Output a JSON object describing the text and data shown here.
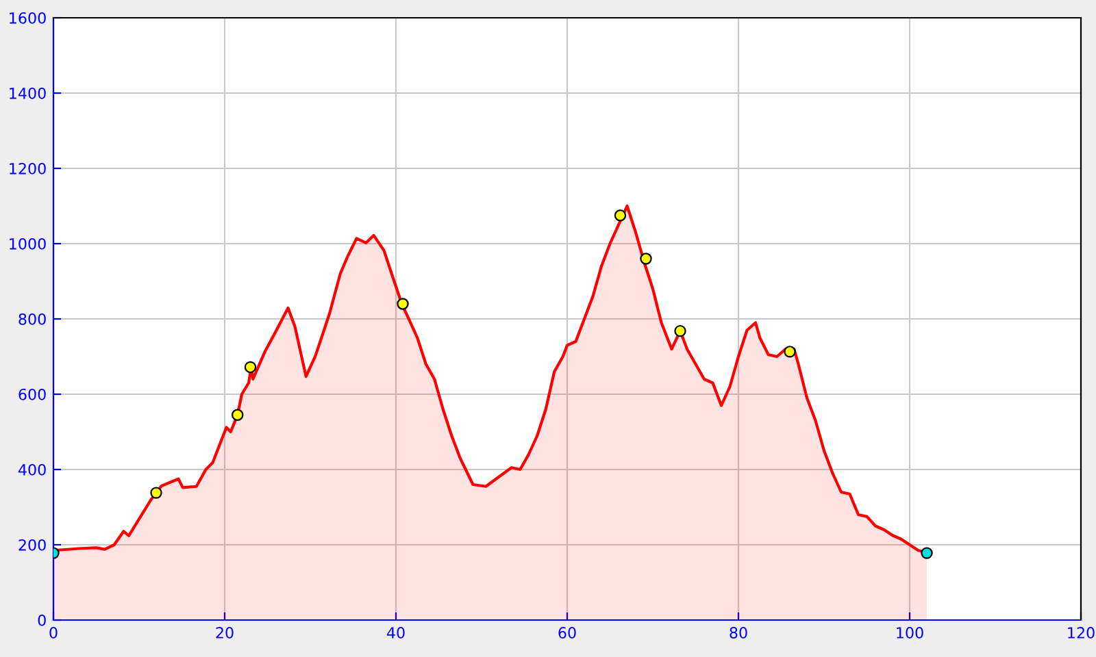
{
  "chart_data": {
    "type": "area",
    "xlim": [
      0,
      120
    ],
    "ylim": [
      0,
      1600
    ],
    "xticks": [
      0,
      20,
      40,
      60,
      80,
      100,
      120
    ],
    "yticks": [
      0,
      200,
      400,
      600,
      800,
      1000,
      1200,
      1400,
      1600
    ],
    "grid": true,
    "legend": false,
    "series": [
      {
        "color": "#ff0000",
        "x": [
          0,
          3,
          5,
          6,
          7.1,
          8.2,
          8.8,
          11.4,
          12,
          12.6,
          14.6,
          15.1,
          16.7,
          17.8,
          18.6,
          20.2,
          20.7,
          21.5,
          22,
          22.8,
          23.1,
          23.3,
          24.7,
          26,
          27.4,
          28.2,
          29.5,
          30.6,
          32.2,
          33.5,
          34.3,
          35.4,
          36.5,
          37.4,
          38.6,
          39.5,
          40.7,
          41.5,
          42.5,
          43.5,
          44.5,
          45.5,
          46.5,
          47.5,
          49,
          50.5,
          52,
          53.5,
          54.5,
          55.5,
          56.5,
          57.5,
          58.5,
          59.5,
          60,
          61,
          62,
          63,
          64,
          65,
          66,
          67,
          68,
          69,
          70,
          71,
          72.2,
          73.2,
          74,
          75,
          76,
          77,
          78,
          79,
          80,
          81,
          82,
          82.5,
          83.5,
          84.5,
          85.5,
          86.5,
          87,
          88,
          89,
          90,
          91,
          92,
          93,
          94,
          95,
          96,
          97,
          98,
          99,
          100,
          101,
          102
        ],
        "values": [
          185,
          190,
          192,
          188,
          200,
          236,
          224,
          320,
          338,
          356,
          375,
          352,
          355,
          400,
          418,
          512,
          500,
          545,
          600,
          630,
          672,
          640,
          713,
          768,
          829,
          780,
          647,
          702,
          811,
          920,
          963,
          1014,
          1002,
          1022,
          982,
          920,
          839,
          800,
          750,
          680,
          640,
          560,
          490,
          430,
          360,
          355,
          380,
          405,
          400,
          440,
          490,
          560,
          660,
          700,
          730,
          740,
          800,
          860,
          940,
          1000,
          1050,
          1100,
          1030,
          950,
          880,
          790,
          720,
          768,
          720,
          680,
          640,
          630,
          570,
          620,
          700,
          770,
          790,
          750,
          705,
          700,
          720,
          720,
          680,
          590,
          530,
          450,
          390,
          340,
          335,
          280,
          275,
          250,
          240,
          225,
          215,
          200,
          185,
          180
        ]
      },
      {
        "type": "scatter",
        "color": "#ffff00",
        "marker": "circle",
        "x": [
          12,
          21.5,
          23,
          40.8,
          66.2,
          69.2,
          73.2,
          86
        ],
        "values": [
          338,
          545,
          672,
          840,
          1075,
          960,
          768,
          713
        ]
      },
      {
        "type": "scatter",
        "color": "#00e0e0",
        "marker": "circle",
        "x": [
          0,
          102
        ],
        "values": [
          178,
          178
        ]
      }
    ]
  }
}
